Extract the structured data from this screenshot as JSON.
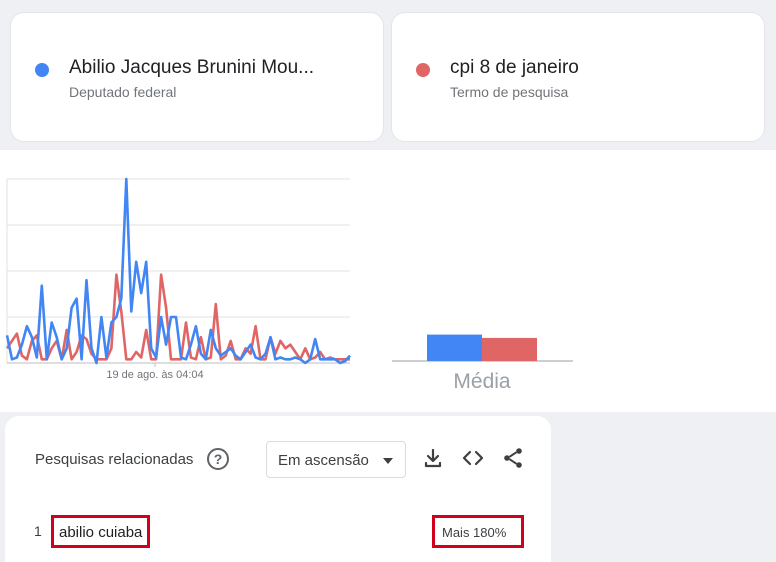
{
  "comparison": [
    {
      "title": "Abilio Jacques Brunini Mou...",
      "subtitle": "Deputado federal",
      "color": "#4285f4"
    },
    {
      "title": "cpi 8 de janeiro",
      "subtitle": "Termo de pesquisa",
      "color": "#e06666"
    }
  ],
  "chart_data": [
    {
      "type": "line",
      "x_tick_label": "19 de ago. às 04:04",
      "ylim": [
        0,
        100
      ],
      "grid": true,
      "series": [
        {
          "color": "#4285f4",
          "values": [
            15,
            2,
            3,
            10,
            20,
            14,
            3,
            42,
            2,
            22,
            14,
            2,
            8,
            30,
            35,
            2,
            45,
            8,
            0,
            25,
            3,
            22,
            25,
            35,
            100,
            28,
            55,
            38,
            55,
            8,
            3,
            25,
            10,
            25,
            25,
            3,
            2,
            10,
            20,
            5,
            2,
            18,
            8,
            4,
            6,
            8,
            4,
            2,
            6,
            10,
            3,
            2,
            5,
            14,
            2,
            3,
            2,
            2,
            3,
            2,
            0,
            2,
            13,
            2,
            2,
            2,
            2,
            0,
            1,
            4
          ]
        },
        {
          "color": "#e06666",
          "values": [
            8,
            12,
            16,
            4,
            2,
            12,
            15,
            2,
            2,
            8,
            12,
            2,
            18,
            2,
            6,
            15,
            13,
            5,
            2,
            2,
            2,
            8,
            48,
            28,
            2,
            2,
            6,
            3,
            18,
            2,
            2,
            48,
            30,
            2,
            2,
            2,
            22,
            3,
            2,
            14,
            2,
            3,
            32,
            2,
            4,
            12,
            2,
            2,
            8,
            5,
            20,
            2,
            2,
            14,
            5,
            12,
            8,
            10,
            6,
            2,
            8,
            2,
            3,
            6,
            2,
            3,
            2,
            2,
            2,
            2
          ]
        }
      ]
    },
    {
      "type": "bar",
      "categories": [
        "Média"
      ],
      "xlabel": "Média",
      "ylim": [
        0,
        100
      ],
      "series": [
        {
          "color": "#4285f4",
          "values": [
            24
          ]
        },
        {
          "color": "#e06666",
          "values": [
            21
          ]
        }
      ]
    }
  ],
  "related": {
    "title": "Pesquisas relacionadas",
    "help_glyph": "?",
    "filter_value": "Em ascensão",
    "rows": [
      {
        "rank": "1",
        "term": "abilio cuiaba",
        "value": "Mais 180%"
      }
    ]
  }
}
